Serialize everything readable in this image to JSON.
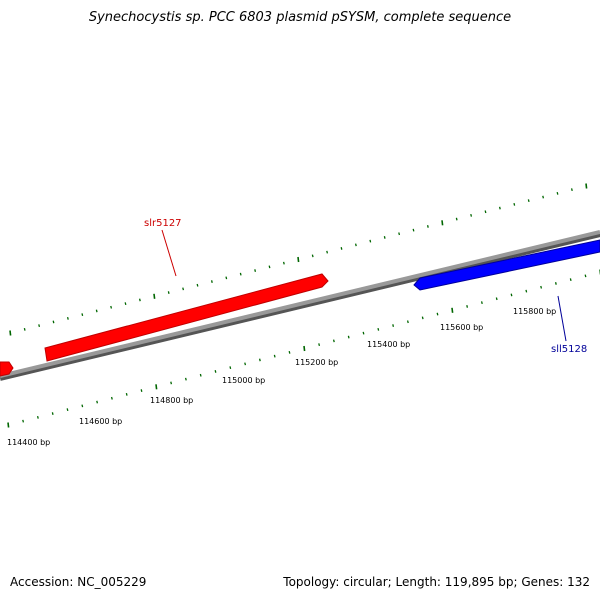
{
  "title": "Synechocystis sp. PCC 6803 plasmid pSYSM, complete sequence",
  "footer": {
    "accession": "Accession: NC_005229",
    "summary": "Topology: circular; Length: 119,895 bp; Genes: 132"
  },
  "colors": {
    "forward_gene": "#ff0000",
    "reverse_gene": "#0000ff",
    "backbone": "#808080",
    "ticks": "#006600",
    "label_forward": "#cc0000",
    "label_reverse": "#000099"
  },
  "scale_labels": [
    "114400 bp",
    "114600 bp",
    "114800 bp",
    "115000 bp",
    "115200 bp",
    "115400 bp",
    "115600 bp",
    "115800 bp"
  ],
  "genes": [
    {
      "name": "slr5127",
      "strand": "forward"
    },
    {
      "name": "sll5128",
      "strand": "reverse"
    }
  ]
}
